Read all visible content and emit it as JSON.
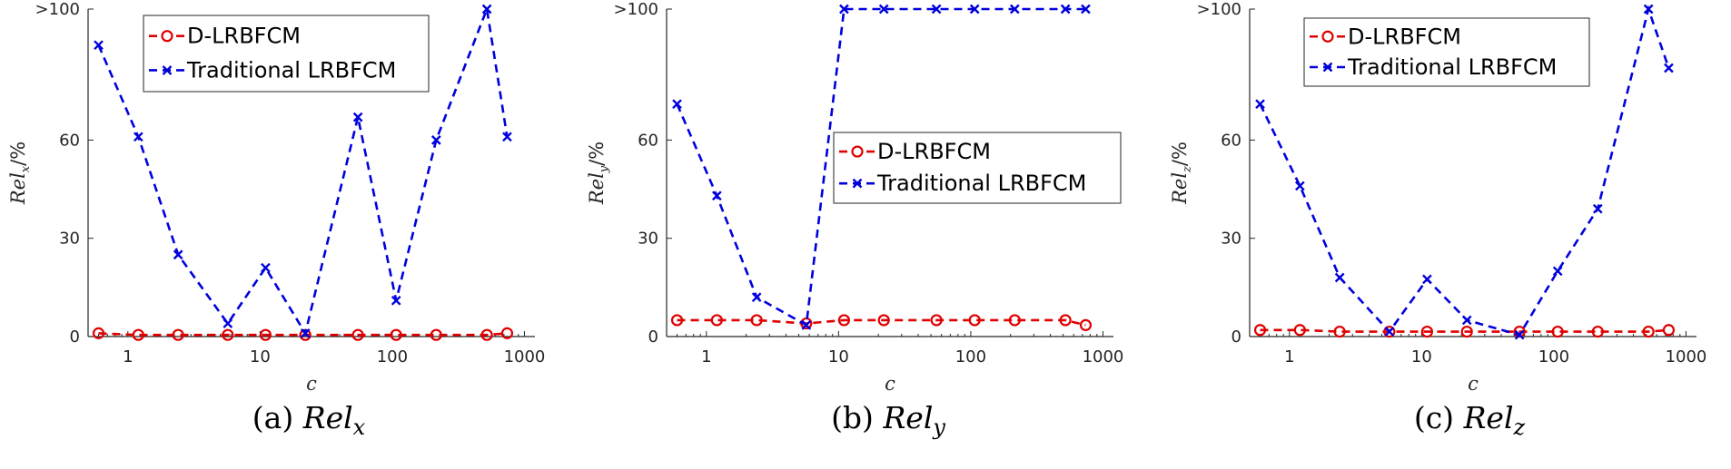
{
  "chart_data": [
    {
      "type": "line",
      "x": [
        0.6,
        1.2,
        2.4,
        5.7,
        11,
        22,
        55,
        107,
        215,
        520,
        740
      ],
      "xscale": "log",
      "xlim": [
        0.5,
        1200
      ],
      "ylim": [
        0,
        100
      ],
      "xticks": [
        {
          "value": 1,
          "label": "1"
        },
        {
          "value": 10,
          "label": "10"
        },
        {
          "value": 100,
          "label": "100"
        },
        {
          "value": 1000,
          "label": "1000"
        }
      ],
      "yticks": [
        {
          "value": 0,
          "label": "0"
        },
        {
          "value": 30,
          "label": "30"
        },
        {
          "value": 60,
          "label": "60"
        },
        {
          "value": 100,
          "label": ">100"
        }
      ],
      "xlabel": "c",
      "ylabel": "Rel_x/%",
      "ylabel_parts": {
        "base": "Rel",
        "sub": "x",
        "tail": "/%"
      },
      "legend_position": "top-center",
      "series": [
        {
          "name": "D-LRBFCM",
          "color": "#e00000",
          "marker": "circle",
          "values": [
            1,
            0.5,
            0.5,
            0.5,
            0.5,
            0.5,
            0.5,
            0.5,
            0.5,
            0.5,
            1
          ]
        },
        {
          "name": "Traditional LRBFCM",
          "color": "#0000dd",
          "marker": "x",
          "values": [
            89,
            61,
            25,
            4,
            21,
            1,
            67,
            11,
            60,
            100,
            61
          ]
        }
      ],
      "caption": {
        "prefix": "(a)",
        "base": "Rel",
        "sub": "x"
      }
    },
    {
      "type": "line",
      "x": [
        0.6,
        1.2,
        2.4,
        5.7,
        11,
        22,
        55,
        107,
        215,
        520,
        740
      ],
      "xscale": "log",
      "xlim": [
        0.5,
        1200
      ],
      "ylim": [
        0,
        100
      ],
      "xticks": [
        {
          "value": 1,
          "label": "1"
        },
        {
          "value": 10,
          "label": "10"
        },
        {
          "value": 100,
          "label": "100"
        },
        {
          "value": 1000,
          "label": "1000"
        }
      ],
      "yticks": [
        {
          "value": 0,
          "label": "0"
        },
        {
          "value": 30,
          "label": "30"
        },
        {
          "value": 60,
          "label": "60"
        },
        {
          "value": 100,
          "label": ">100"
        }
      ],
      "xlabel": "c",
      "ylabel": "Rel_y/%",
      "ylabel_parts": {
        "base": "Rel",
        "sub": "y",
        "tail": "/%"
      },
      "legend_position": "center-right",
      "series": [
        {
          "name": "D-LRBFCM",
          "color": "#e00000",
          "marker": "circle",
          "values": [
            5,
            5,
            5,
            4,
            5,
            5,
            5,
            5,
            5,
            5,
            3.5
          ]
        },
        {
          "name": "Traditional LRBFCM",
          "color": "#0000dd",
          "marker": "x",
          "values": [
            71,
            43,
            12,
            3.5,
            100,
            100,
            100,
            100,
            100,
            100,
            100
          ]
        }
      ],
      "caption": {
        "prefix": "(b)",
        "base": "Rel",
        "sub": "y"
      }
    },
    {
      "type": "line",
      "x": [
        0.6,
        1.2,
        2.4,
        5.7,
        11,
        22,
        55,
        107,
        215,
        520,
        740
      ],
      "xscale": "log",
      "xlim": [
        0.5,
        1200
      ],
      "ylim": [
        0,
        100
      ],
      "xticks": [
        {
          "value": 1,
          "label": "1"
        },
        {
          "value": 10,
          "label": "10"
        },
        {
          "value": 100,
          "label": "100"
        },
        {
          "value": 1000,
          "label": "1000"
        }
      ],
      "yticks": [
        {
          "value": 0,
          "label": "0"
        },
        {
          "value": 30,
          "label": "30"
        },
        {
          "value": 60,
          "label": "60"
        },
        {
          "value": 100,
          "label": ">100"
        }
      ],
      "xlabel": "c",
      "ylabel": "Rel_z/%",
      "ylabel_parts": {
        "base": "Rel",
        "sub": "z",
        "tail": "/%"
      },
      "legend_position": "top-left",
      "series": [
        {
          "name": "D-LRBFCM",
          "color": "#e00000",
          "marker": "circle",
          "values": [
            2,
            2,
            1.5,
            1.5,
            1.5,
            1.5,
            1.5,
            1.5,
            1.5,
            1.5,
            2
          ]
        },
        {
          "name": "Traditional LRBFCM",
          "color": "#0000dd",
          "marker": "x",
          "values": [
            71,
            46,
            18,
            1.5,
            17.5,
            5,
            0.5,
            20,
            39,
            100,
            82
          ]
        }
      ],
      "caption": {
        "prefix": "(c)",
        "base": "Rel",
        "sub": "z"
      }
    }
  ]
}
